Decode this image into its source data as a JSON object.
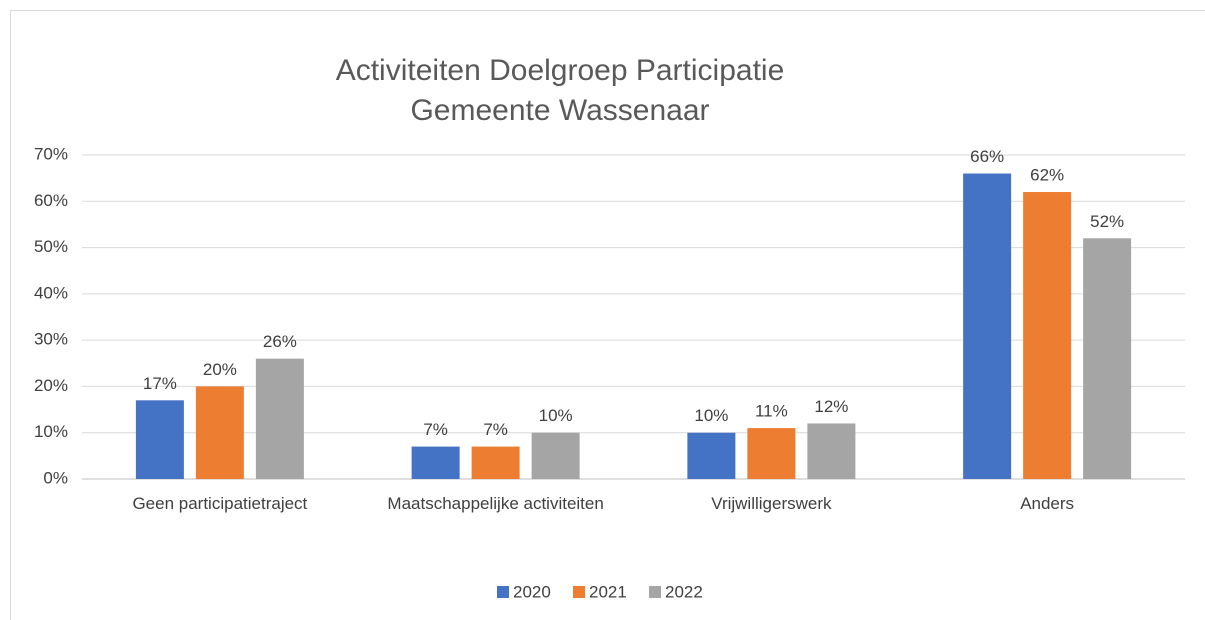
{
  "chart_data": {
    "type": "bar",
    "title": [
      "Activiteiten Doelgroep Participatie",
      "Gemeente Wassenaar"
    ],
    "categories": [
      "Geen participatietraject",
      "Maatschappelijke activiteiten",
      "Vrijwilligerswerk",
      "Anders"
    ],
    "series": [
      {
        "name": "2020",
        "color": "#4472c4",
        "values": [
          17,
          7,
          10,
          66
        ],
        "value_labels": [
          "17%",
          "7%",
          "10%",
          "66%"
        ]
      },
      {
        "name": "2021",
        "color": "#ed7d31",
        "values": [
          20,
          7,
          11,
          62
        ],
        "value_labels": [
          "20%",
          "7%",
          "11%",
          "62%"
        ]
      },
      {
        "name": "2022",
        "color": "#a5a5a5",
        "values": [
          26,
          10,
          12,
          52
        ],
        "value_labels": [
          "26%",
          "10%",
          "12%",
          "52%"
        ]
      }
    ],
    "ylim": [
      0,
      70
    ],
    "yticks": [
      {
        "value": 0,
        "label": "0%"
      },
      {
        "value": 10,
        "label": "10%"
      },
      {
        "value": 20,
        "label": "20%"
      },
      {
        "value": 30,
        "label": "30%"
      },
      {
        "value": 40,
        "label": "40%"
      },
      {
        "value": 50,
        "label": "50%"
      },
      {
        "value": 60,
        "label": "60%"
      },
      {
        "value": 70,
        "label": "70%"
      }
    ],
    "grid": true,
    "legend": "bottom"
  }
}
